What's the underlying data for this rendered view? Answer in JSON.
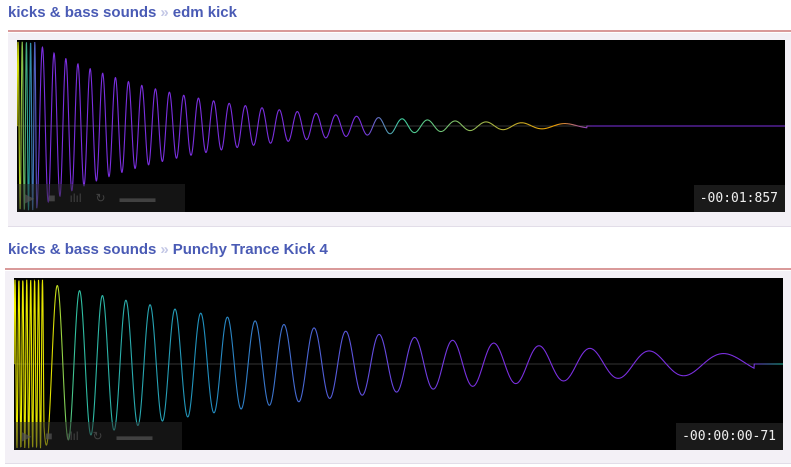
{
  "players": [
    {
      "breadcrumb": {
        "category": "kicks & bass sounds",
        "separator": "»",
        "title": "edm kick"
      },
      "time": "-00:01:857"
    },
    {
      "breadcrumb": {
        "category": "kicks & bass sounds",
        "separator": "»",
        "title": "Punchy Trance Kick 4"
      },
      "time": "-00:00:00-71"
    }
  ],
  "controls": {
    "play": "▶",
    "stop": "■",
    "spectrum": "ılıl",
    "loop": "↻",
    "volume": "▬▬▬"
  },
  "icons": [
    "play-icon",
    "stop-icon",
    "spectrum-icon",
    "loop-icon",
    "volume-icon"
  ],
  "colors": {
    "link": "#4a5bb5",
    "rule": "#d99a9a",
    "panel": "#f3f0f6",
    "wave_purple": "#7b2fe0",
    "wave_yellow": "#f0e000"
  }
}
